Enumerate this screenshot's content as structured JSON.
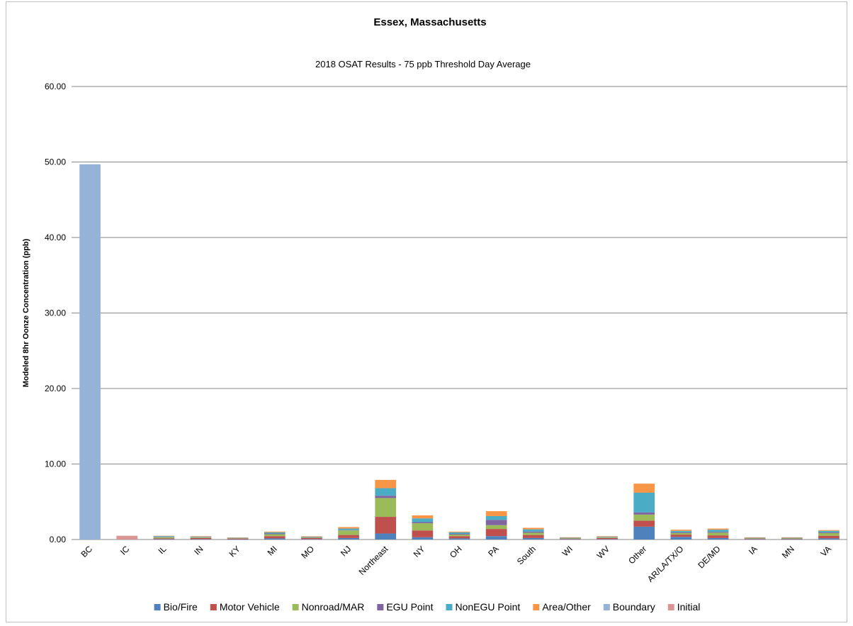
{
  "chart_data": {
    "type": "bar",
    "stacked": true,
    "title": "Essex, Massachusetts",
    "subtitle": "2018 OSAT Results - 75 ppb Threshold Day Average",
    "ylabel": "Modeled 8hr Oonze Concentration (ppb)",
    "xlabel": "",
    "ylim": [
      0,
      60
    ],
    "yticks": [
      "0.00",
      "10.00",
      "20.00",
      "30.00",
      "40.00",
      "50.00",
      "60.00"
    ],
    "grid": true,
    "legend_position": "bottom",
    "categories": [
      "BC",
      "IC",
      "IL",
      "IN",
      "KY",
      "MI",
      "MO",
      "NJ",
      "Northeast",
      "NY",
      "OH",
      "PA",
      "South",
      "WI",
      "WV",
      "Other",
      "AR/LA/TX/O",
      "DE/MD",
      "IA",
      "MN",
      "VA"
    ],
    "series": [
      {
        "name": "Bio/Fire",
        "color": "#4F81BD",
        "values": [
          0,
          0,
          0.05,
          0.05,
          0.02,
          0.15,
          0.05,
          0.2,
          0.8,
          0.3,
          0.15,
          0.45,
          0.2,
          0.05,
          0.05,
          1.7,
          0.35,
          0.2,
          0.05,
          0.05,
          0.15
        ]
      },
      {
        "name": "Motor Vehicle",
        "color": "#C0504D",
        "values": [
          0,
          0,
          0.1,
          0.15,
          0.08,
          0.3,
          0.15,
          0.4,
          2.2,
          0.9,
          0.3,
          0.95,
          0.4,
          0.05,
          0.15,
          0.8,
          0.3,
          0.35,
          0.05,
          0.05,
          0.35
        ]
      },
      {
        "name": "Nonroad/MAR",
        "color": "#9BBB59",
        "values": [
          0,
          0,
          0.15,
          0.1,
          0.05,
          0.25,
          0.1,
          0.6,
          2.5,
          0.95,
          0.2,
          0.5,
          0.3,
          0.1,
          0.1,
          0.8,
          0.2,
          0.35,
          0.1,
          0.1,
          0.35
        ]
      },
      {
        "name": "EGU Point",
        "color": "#8064A2",
        "values": [
          0,
          0,
          0.05,
          0.05,
          0.05,
          0.1,
          0.02,
          0.05,
          0.3,
          0.15,
          0.1,
          0.7,
          0.15,
          0.02,
          0.05,
          0.3,
          0.1,
          0.1,
          0.02,
          0.02,
          0.1
        ]
      },
      {
        "name": "NonEGU Point",
        "color": "#4BACC6",
        "values": [
          0,
          0,
          0.1,
          0.05,
          0.05,
          0.15,
          0.05,
          0.2,
          1.0,
          0.5,
          0.2,
          0.5,
          0.3,
          0.05,
          0.05,
          2.6,
          0.2,
          0.3,
          0.05,
          0.05,
          0.2
        ]
      },
      {
        "name": "Area/Other",
        "color": "#F79646",
        "values": [
          0,
          0,
          0.05,
          0.05,
          0.02,
          0.1,
          0.05,
          0.2,
          1.1,
          0.4,
          0.1,
          0.65,
          0.2,
          0.03,
          0.05,
          1.2,
          0.15,
          0.15,
          0.02,
          0.02,
          0.1
        ]
      },
      {
        "name": "Boundary",
        "color": "#95B3D7",
        "values": [
          49.7,
          0,
          0,
          0,
          0,
          0,
          0,
          0,
          0,
          0,
          0,
          0,
          0,
          0,
          0,
          0,
          0,
          0,
          0,
          0,
          0
        ]
      },
      {
        "name": "Initial",
        "color": "#DA9694",
        "values": [
          0,
          0.5,
          0,
          0,
          0,
          0,
          0,
          0,
          0,
          0,
          0,
          0,
          0,
          0,
          0,
          0,
          0,
          0,
          0,
          0,
          0
        ]
      }
    ]
  }
}
